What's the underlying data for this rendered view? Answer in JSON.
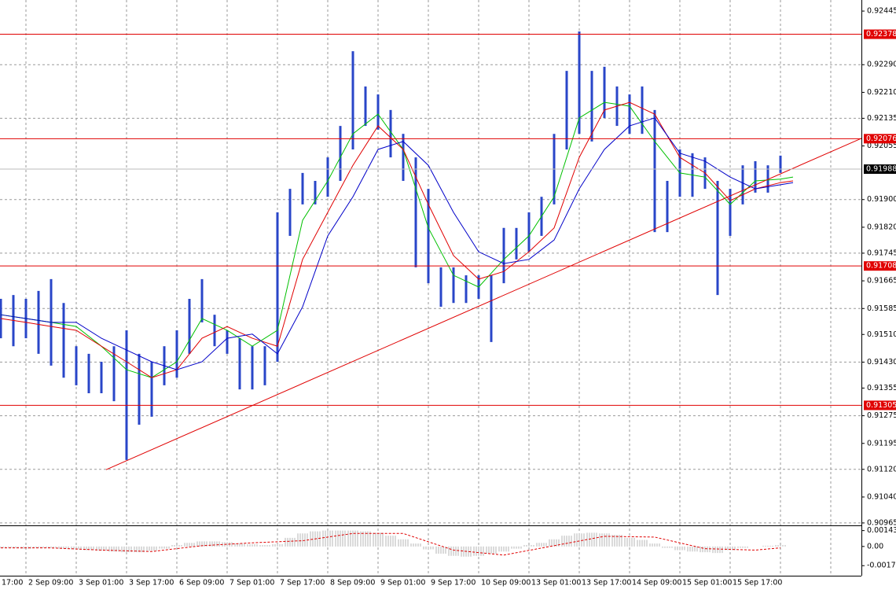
{
  "chart_data": [
    {
      "type": "range-bar",
      "color": "#2946c8",
      "xlim": [
        -2.0625,
        66.4375
      ],
      "ylim": [
        0.90958,
        0.92477
      ],
      "x": [
        -2,
        -1,
        0,
        1,
        2,
        3,
        4,
        5,
        6,
        7,
        8,
        9,
        10,
        11,
        12,
        13,
        14,
        15,
        16,
        17,
        18,
        19,
        20,
        21,
        22,
        23,
        24,
        25,
        26,
        27,
        28,
        29,
        30,
        31,
        32,
        33,
        34,
        35,
        36,
        37,
        38,
        39,
        40,
        41,
        42,
        43,
        44,
        45,
        46,
        47,
        48,
        49,
        50,
        51,
        52,
        53,
        54,
        55,
        56,
        57,
        58,
        59,
        60
      ],
      "high": [
        0.91613,
        0.91624,
        0.91613,
        0.91636,
        0.9167,
        0.91601,
        0.91476,
        0.91454,
        0.91431,
        0.91476,
        0.91522,
        0.91454,
        0.91431,
        0.91476,
        0.91522,
        0.91613,
        0.9167,
        0.91567,
        0.91522,
        0.91499,
        0.91476,
        0.91476,
        0.91863,
        0.91931,
        0.91977,
        0.91954,
        0.92022,
        0.92113,
        0.92329,
        0.92227,
        0.92204,
        0.92159,
        0.9209,
        0.92022,
        0.91931,
        0.91704,
        0.91704,
        0.91681,
        0.91681,
        0.91681,
        0.91818,
        0.91818,
        0.91863,
        0.91908,
        0.9209,
        0.92272,
        0.92386,
        0.92272,
        0.92284,
        0.92227,
        0.92204,
        0.92227,
        0.92159,
        0.91954,
        0.92045,
        0.92034,
        0.92022,
        0.91954,
        0.91931,
        0.91999,
        0.92011,
        0.91999,
        0.92027
      ],
      "low": [
        0.91499,
        0.91476,
        0.91499,
        0.91454,
        0.9142,
        0.91385,
        0.91363,
        0.9134,
        0.9134,
        0.91317,
        0.91147,
        0.91249,
        0.91272,
        0.91363,
        0.91385,
        0.91454,
        0.91545,
        0.91476,
        0.91454,
        0.91351,
        0.91351,
        0.91363,
        0.91431,
        0.91795,
        0.91886,
        0.91886,
        0.91908,
        0.91954,
        0.92045,
        0.92113,
        0.92102,
        0.92022,
        0.91954,
        0.91704,
        0.91658,
        0.9159,
        0.91601,
        0.91601,
        0.91613,
        0.91488,
        0.91658,
        0.91727,
        0.91749,
        0.91795,
        0.91886,
        0.92045,
        0.9209,
        0.92068,
        0.92136,
        0.92113,
        0.9209,
        0.9209,
        0.91806,
        0.91806,
        0.91908,
        0.91908,
        0.91931,
        0.91624,
        0.91795,
        0.91886,
        0.9192,
        0.9192,
        0.91977
      ],
      "series": [
        {
          "color": "#00c000",
          "x": [
            -2,
            0,
            2,
            4,
            6,
            8,
            10,
            12,
            14,
            16,
            18,
            20,
            22,
            24,
            26,
            28,
            30,
            32,
            34,
            36,
            38,
            40,
            42,
            44,
            46,
            48,
            50,
            52,
            54,
            56,
            58,
            60,
            61
          ],
          "values": [
            0.91567,
            0.91556,
            0.91545,
            0.91533,
            0.91476,
            0.91408,
            0.91385,
            0.91431,
            0.91556,
            0.91522,
            0.91476,
            0.91522,
            0.9184,
            0.91954,
            0.9209,
            0.92147,
            0.92045,
            0.91818,
            0.91681,
            0.91647,
            0.91727,
            0.91795,
            0.91908,
            0.92136,
            0.92181,
            0.9217,
            0.92068,
            0.91977,
            0.91965,
            0.91886,
            0.91954,
            0.91959,
            0.91965
          ]
        },
        {
          "color": "#e00000",
          "x": [
            -2,
            0,
            2,
            4,
            6,
            8,
            10,
            12,
            14,
            16,
            18,
            20,
            22,
            24,
            26,
            28,
            30,
            32,
            34,
            36,
            38,
            40,
            42,
            44,
            46,
            48,
            50,
            52,
            54,
            56,
            58,
            60,
            61
          ],
          "values": [
            0.91556,
            0.91545,
            0.91533,
            0.91522,
            0.91476,
            0.91431,
            0.91385,
            0.91408,
            0.91499,
            0.91533,
            0.91499,
            0.91476,
            0.91727,
            0.91863,
            0.91999,
            0.92113,
            0.92045,
            0.91886,
            0.91738,
            0.9167,
            0.91692,
            0.91749,
            0.91818,
            0.92022,
            0.92159,
            0.92181,
            0.92147,
            0.92022,
            0.91977,
            0.91897,
            0.91931,
            0.91949,
            0.91954
          ]
        },
        {
          "color": "#0000c8",
          "x": [
            -2,
            0,
            2,
            4,
            6,
            8,
            10,
            12,
            14,
            16,
            18,
            20,
            22,
            24,
            26,
            28,
            30,
            32,
            34,
            36,
            38,
            40,
            42,
            44,
            46,
            48,
            50,
            52,
            54,
            56,
            58,
            60,
            61
          ],
          "values": [
            0.91567,
            0.91556,
            0.91545,
            0.91545,
            0.91499,
            0.91465,
            0.91431,
            0.91408,
            0.91431,
            0.91499,
            0.91511,
            0.91454,
            0.9159,
            0.91795,
            0.91908,
            0.92045,
            0.92068,
            0.91999,
            0.91863,
            0.91749,
            0.91715,
            0.91727,
            0.91783,
            0.91931,
            0.92045,
            0.92113,
            0.92136,
            0.92034,
            0.92011,
            0.91965,
            0.91931,
            0.91943,
            0.91949
          ]
        }
      ],
      "trendline": {
        "color": "#e00000",
        "x": [
          6.375,
          66.4375
        ],
        "values": [
          0.91119,
          0.92077
        ]
      },
      "levels": {
        "color": "#e00000",
        "values": [
          0.92378,
          0.92076,
          0.91708,
          0.91305
        ]
      },
      "last": 0.91988,
      "yticks": [
        0.92445,
        {
          "value": 0.9229,
          "label": "0.92290"
        },
        {
          "value": 0.9221,
          "label": "0.92210"
        },
        0.92135,
        0.92055,
        {
          "value": 0.919,
          "label": "0.91900"
        },
        {
          "value": 0.9182,
          "label": "0.91820"
        },
        0.91745,
        0.91665,
        0.91585,
        {
          "value": 0.9151,
          "label": "0.91510"
        },
        {
          "value": 0.9143,
          "label": "0.91430"
        },
        0.91355,
        0.91275,
        0.91195,
        {
          "value": 0.9112,
          "label": "0.91120"
        },
        {
          "value": 0.9104,
          "label": "0.91040"
        },
        0.90965
      ],
      "xticks": [
        {
          "value": -4,
          "label": "17:00"
        },
        {
          "value": 0,
          "label": "2 Sep 09:00"
        },
        {
          "value": 4,
          "label": "3 Sep 01:00"
        },
        {
          "value": 8,
          "label": "3 Sep 17:00"
        },
        {
          "value": 12,
          "label": "6 Sep 09:00"
        },
        {
          "value": 16,
          "label": "7 Sep 01:00"
        },
        {
          "value": 20,
          "label": "7 Sep 17:00"
        },
        {
          "value": 24,
          "label": "8 Sep 09:00"
        },
        {
          "value": 28,
          "label": "9 Sep 01:00"
        },
        {
          "value": 32,
          "label": "9 Sep 17:00"
        },
        {
          "value": 36,
          "label": "10 Sep 09:00"
        },
        {
          "value": 40,
          "label": "13 Sep 01:00"
        },
        {
          "value": 44,
          "label": "13 Sep 17:00"
        },
        {
          "value": 48,
          "label": "14 Sep 09:00"
        },
        {
          "value": 52,
          "label": "15 Sep 01:00"
        },
        {
          "value": 56,
          "label": "15 Sep 17:00"
        },
        {
          "value": 60,
          "label": null
        },
        {
          "value": 64,
          "label": null
        }
      ],
      "grid": true
    },
    {
      "type": "oscillator",
      "color": "#b4b4b4",
      "xlim": [
        -2.0625,
        66.4375
      ],
      "ylim": [
        -0.00265,
        0.00177
      ],
      "x": [
        -2,
        -1,
        0,
        1,
        2,
        3,
        4,
        5,
        6,
        7,
        8,
        9,
        10,
        11,
        12,
        13,
        14,
        15,
        16,
        17,
        18,
        19,
        20,
        21,
        22,
        23,
        24,
        25,
        26,
        27,
        28,
        29,
        30,
        31,
        32,
        33,
        34,
        35,
        36,
        37,
        38,
        39,
        40,
        41,
        42,
        43,
        44,
        45,
        46,
        47,
        48,
        49,
        50,
        51,
        52,
        53,
        54,
        55,
        56,
        57,
        58,
        59,
        60
      ],
      "values": [
        -0.00013,
        -0.00013,
        -0.0002,
        -0.00013,
        -0.00013,
        -0.0002,
        -0.00026,
        -0.00033,
        -0.00039,
        -0.00046,
        -0.00052,
        -0.00052,
        -0.00039,
        -0.0002,
        0.00013,
        0.00033,
        0.00046,
        0.00046,
        0.00039,
        0.00026,
        0.0002,
        0.00013,
        0.0002,
        0.00078,
        0.00118,
        0.00137,
        0.00144,
        0.00144,
        0.00144,
        0.00137,
        0.00124,
        0.00098,
        0.00065,
        0.00026,
        -0.00026,
        -0.00065,
        -0.00085,
        -0.00092,
        -0.00085,
        -0.00065,
        -0.00046,
        -0.0002,
        0.00013,
        0.00033,
        0.00065,
        0.00098,
        0.00118,
        0.00124,
        0.00118,
        0.00105,
        0.00078,
        0.00059,
        0.00026,
        -0.00013,
        -0.00033,
        -0.00046,
        -0.00052,
        -0.00059,
        -0.00033,
        -0.00013,
        0,
        7e-05,
        0.00013
      ],
      "signal": {
        "color": "#e00000",
        "x": [
          -2,
          2,
          6,
          10,
          14,
          18,
          22,
          26,
          30,
          34,
          38,
          42,
          46,
          50,
          54,
          58,
          60
        ],
        "values": [
          -0.00013,
          -0.00013,
          -0.00033,
          -0.00046,
          7e-05,
          0.00033,
          0.00052,
          0.00118,
          0.00118,
          -0.00033,
          -0.00078,
          7e-05,
          0.00092,
          0.00085,
          -0.0002,
          -0.00033,
          -0.00013
        ]
      },
      "yticks": [
        0.001439,
        {
          "value": 0,
          "label": "0.00"
        },
        -0.00174
      ]
    }
  ]
}
